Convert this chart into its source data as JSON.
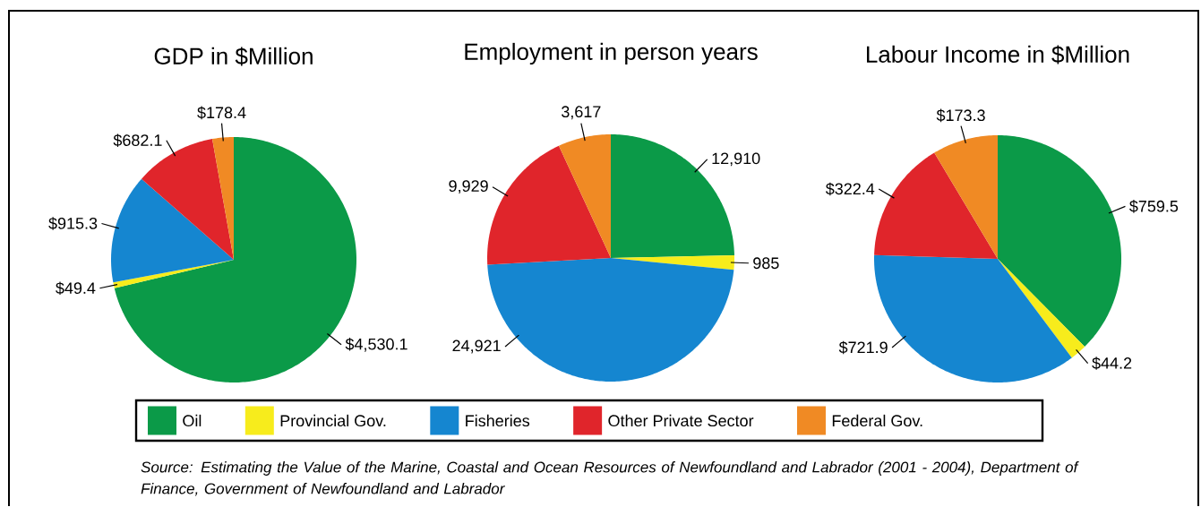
{
  "chart_data": [
    {
      "type": "pie",
      "title": "GDP in $Million",
      "categories": [
        "Oil",
        "Provincial Gov.",
        "Fisheries",
        "Other Private Sector",
        "Federal Gov."
      ],
      "values": [
        4530.1,
        49.4,
        915.3,
        682.1,
        178.4
      ],
      "value_labels": [
        "$4,530.1",
        "$49.4",
        "$915.3",
        "$682.1",
        "$178.4"
      ],
      "colors": [
        "#0b9a48",
        "#f7ec1c",
        "#1586d0",
        "#e0252b",
        "#f08a24"
      ],
      "legend": "bottom",
      "annotations": [
        "Source:  Estimating the  Value of the Marine, Coastal and Ocean Resources of Newfoundland and Labrador (2001 - 2004), Department of Finance, Government of Newfoundland and Labrador"
      ]
    },
    {
      "type": "pie",
      "title": "Employment in person years",
      "categories": [
        null,
        null,
        null,
        null,
        null
      ],
      "values": [
        12910,
        985,
        24921,
        9929,
        3617
      ],
      "value_labels": [
        "12,910",
        "985",
        "24,921",
        "9,929",
        "3,617"
      ],
      "colors": [
        "#0b9a48",
        "#f7ec1c",
        "#1586d0",
        "#e0252b",
        "#f08a24"
      ]
    },
    {
      "type": "pie",
      "title": "Labour Income in $Million",
      "categories": [
        null,
        null,
        null,
        null,
        null
      ],
      "values": [
        759.5,
        44.2,
        721.9,
        322.4,
        173.3
      ],
      "value_labels": [
        "$759.5",
        "$44.2",
        "$721.9",
        "$322.4",
        "$173.3"
      ],
      "colors": [
        "#0b9a48",
        "#f7ec1c",
        "#1586d0",
        "#e0252b",
        "#f08a24"
      ]
    }
  ]
}
